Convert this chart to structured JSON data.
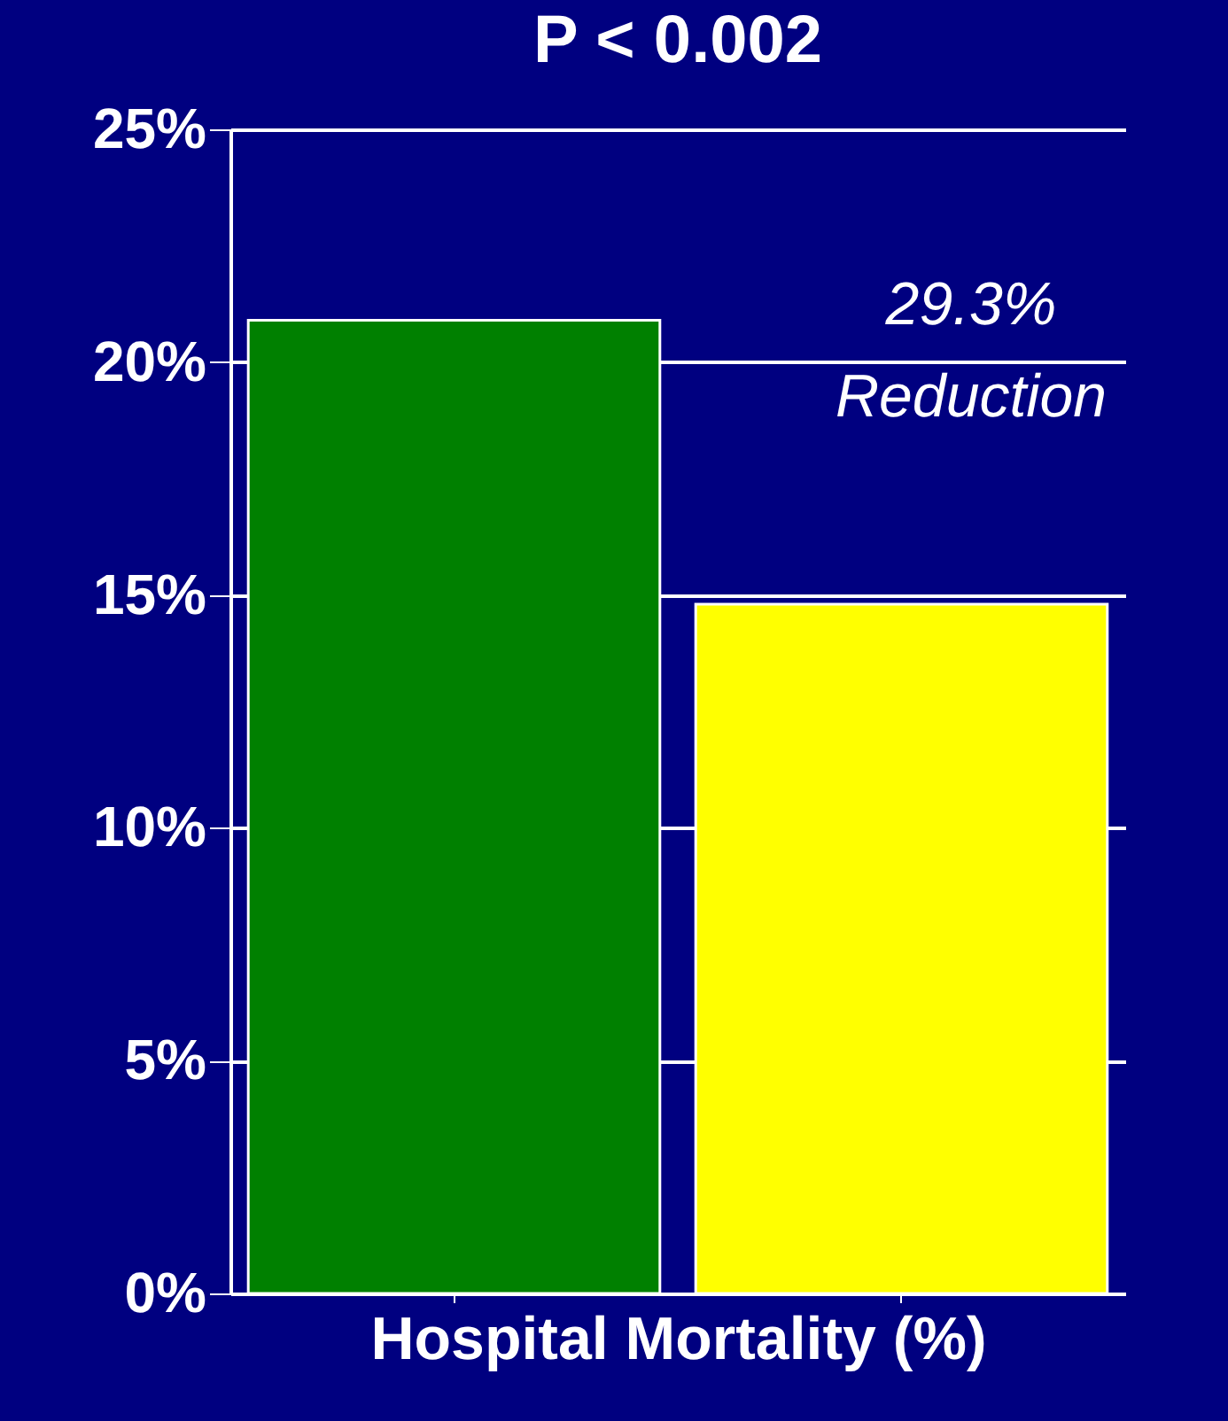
{
  "chart_data": {
    "type": "bar",
    "title": "P < 0.002",
    "xlabel": "Hospital Mortality (%)",
    "categories": [
      null,
      null
    ],
    "values": [
      20.9,
      14.8
    ],
    "colors": [
      "#008000",
      "#ffff00"
    ],
    "ylim": [
      0,
      25
    ],
    "yticks": [
      {
        "value": 0,
        "label": "0%"
      },
      {
        "value": 5,
        "label": "5%"
      },
      {
        "value": 10,
        "label": "10%"
      },
      {
        "value": 15,
        "label": "15%"
      },
      {
        "value": 20,
        "label": "20%"
      },
      {
        "value": 25,
        "label": "25%"
      }
    ],
    "grid": "y",
    "tick_labels": "y",
    "annotations": [
      "29.3% Reduction"
    ]
  }
}
